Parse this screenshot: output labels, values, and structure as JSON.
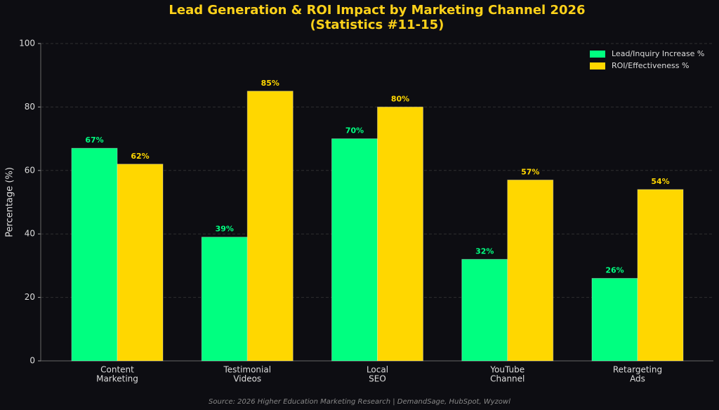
{
  "chart_data": {
    "type": "bar",
    "title": [
      "Lead Generation & ROI Impact by Marketing Channel 2026",
      "(Statistics #11-15)"
    ],
    "categories": [
      [
        "Content",
        "Marketing"
      ],
      [
        "Testimonial",
        "Videos"
      ],
      [
        "Local",
        "SEO"
      ],
      [
        "YouTube",
        "Channel"
      ],
      [
        "Retargeting",
        "Ads"
      ]
    ],
    "series": [
      {
        "name": "Lead/Inquiry Increase %",
        "color": "#00ff80",
        "values": [
          67,
          39,
          70,
          32,
          26
        ],
        "value_labels": [
          "67%",
          "39%",
          "70%",
          "32%",
          "26%"
        ]
      },
      {
        "name": "ROI/Effectiveness %",
        "color": "#ffd700",
        "values": [
          62,
          85,
          80,
          57,
          54
        ],
        "value_labels": [
          "62%",
          "85%",
          "80%",
          "57%",
          "54%"
        ]
      }
    ],
    "y_label": "Percentage (%)",
    "ylim": [
      0,
      100
    ],
    "yticks": [
      0,
      20,
      40,
      60,
      80,
      100
    ],
    "grid": true,
    "legend": "upper-right",
    "source": "Source: 2026 Higher Education Marketing Research | DemandSage, HubSpot, Wyzowl"
  }
}
